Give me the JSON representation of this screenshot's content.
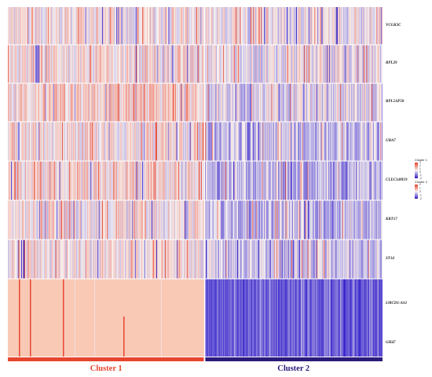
{
  "colors": {
    "high": "#e8402a",
    "mid": "#f7f2f0",
    "low": "#2a16c8",
    "cluster1_pink": "#f9c9b6",
    "cluster1_bar": "#e8452e",
    "cluster2_bar": "#2b1a7a",
    "cluster1_text": "#e8452e",
    "cluster2_text": "#2b1a7a"
  },
  "chart_data": {
    "type": "heatmap",
    "title": "",
    "genes": [
      "VCGK3C",
      "RPL29",
      "RPL5AP58",
      "UBA7",
      "CLEC14M19",
      "KRT17",
      "ST14",
      "LMCD1-AS1",
      "GH47"
    ],
    "clusters": [
      {
        "name": "Cluster 1",
        "fraction": 0.525
      },
      {
        "name": "Cluster 2",
        "fraction": 0.475
      }
    ],
    "legend": {
      "cluster1": {
        "title": "Cluster 1",
        "ticks": [
          "3",
          "2",
          "1",
          "0",
          "-1",
          "-2"
        ]
      },
      "cluster2": {
        "title": "Cluster 2",
        "ticks": [
          "2",
          "1",
          "0",
          "-1",
          "-2"
        ]
      }
    },
    "value_range": [
      -2,
      3
    ],
    "columns": 560
  }
}
